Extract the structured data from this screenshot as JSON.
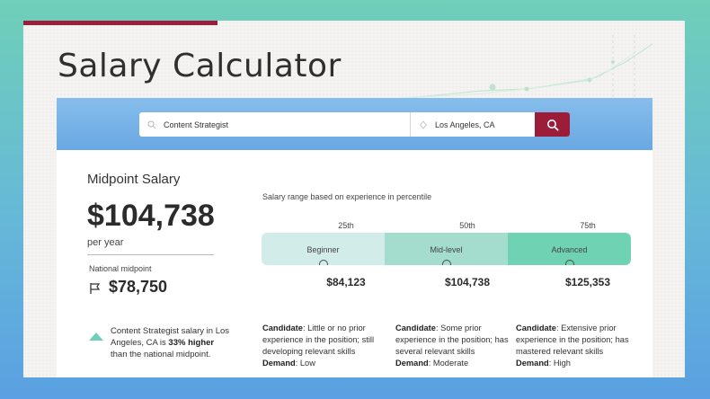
{
  "title": "Salary Calculator",
  "search": {
    "job_value": "Content Strategist",
    "location_value": "Los Angeles, CA"
  },
  "midpoint": {
    "label": "Midpoint Salary",
    "value": "$104,738",
    "period": "per year"
  },
  "national": {
    "label": "National midpoint",
    "value": "$78,750",
    "compare_pre": "Content Strategist salary in Los Angeles, CA is ",
    "compare_bold": "33% higher",
    "compare_post": " than the national midpoint."
  },
  "range": {
    "title": "Salary range based on experience in percentile",
    "percentiles": [
      "25th",
      "50th",
      "75th"
    ],
    "levels": [
      "Beginner",
      "Mid-level",
      "Advanced"
    ],
    "amounts": [
      "$84,123",
      "$104,738",
      "$125,353"
    ],
    "descriptions": [
      {
        "candidate_label": "Candidate",
        "candidate_text": ": Little or no prior experience in the position; still developing relevant skills",
        "demand_label": "Demand",
        "demand_text": ": Low"
      },
      {
        "candidate_label": "Candidate",
        "candidate_text": ": Some prior experience in the position; has several relevant skills",
        "demand_label": "Demand",
        "demand_text": ": Moderate"
      },
      {
        "candidate_label": "Candidate",
        "candidate_text": ": Extensive prior experience in the position; has mastered relevant skills",
        "demand_label": "Demand",
        "demand_text": ": High"
      }
    ]
  },
  "icons": {
    "search": "search-icon",
    "location": "location-pin-icon",
    "flag": "flag-icon",
    "trend": "triangle-up-icon"
  },
  "colors": {
    "accent": "#9b1d3a",
    "beginner": "#d2ece9",
    "mid": "#a4dccd",
    "advanced": "#6fd2b2"
  }
}
